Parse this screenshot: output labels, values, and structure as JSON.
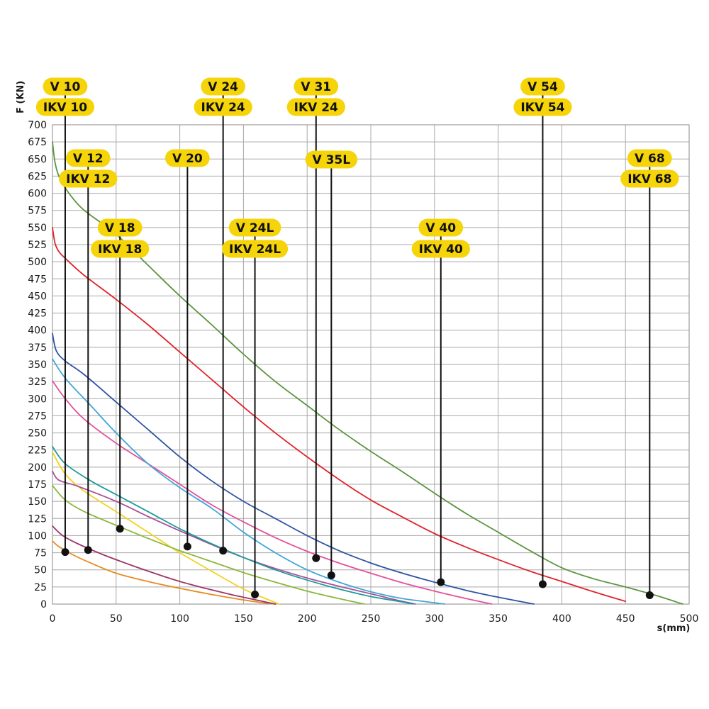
{
  "chart_data": {
    "type": "line",
    "xlabel": "s(mm)",
    "ylabel": "F (KN)",
    "xlim": [
      0,
      500
    ],
    "ylim": [
      0,
      700
    ],
    "xticks": [
      "0",
      "50",
      "100",
      "150",
      "200",
      "250",
      "300",
      "350",
      "400",
      "450",
      "500"
    ],
    "yticks": [
      "0",
      "25",
      "50",
      "75",
      "100",
      "125",
      "150",
      "175",
      "200",
      "225",
      "250",
      "275",
      "300",
      "325",
      "350",
      "375",
      "400",
      "425",
      "450",
      "475",
      "500",
      "525",
      "550",
      "575",
      "600",
      "625",
      "650",
      "675",
      "700"
    ],
    "grid": true,
    "label_color": "#f6d40a",
    "series": [
      {
        "color": "#e88a24",
        "x": [
          0,
          5,
          15,
          30,
          50,
          75,
          100,
          125,
          150,
          165,
          175
        ],
        "y": [
          92,
          84,
          73,
          60,
          45,
          33,
          23,
          14,
          6,
          2,
          0
        ]
      },
      {
        "color": "#9c3568",
        "x": [
          0,
          8,
          20,
          40,
          60,
          80,
          100,
          120,
          140,
          160,
          175
        ],
        "y": [
          114,
          100,
          88,
          72,
          58,
          45,
          33,
          23,
          14,
          6,
          0
        ]
      },
      {
        "color": "#f2d21c",
        "x": [
          0,
          10,
          25,
          50,
          75,
          100,
          125,
          150,
          170,
          178
        ],
        "y": [
          222,
          190,
          165,
          135,
          105,
          75,
          48,
          22,
          6,
          0
        ]
      },
      {
        "color": "#8ab83a",
        "x": [
          0,
          10,
          25,
          50,
          75,
          100,
          125,
          150,
          175,
          200,
          225,
          245
        ],
        "y": [
          173,
          152,
          135,
          115,
          96,
          78,
          62,
          46,
          32,
          19,
          8,
          0
        ]
      },
      {
        "color": "#a84f9a",
        "x": [
          0,
          5,
          20,
          50,
          75,
          100,
          125,
          150,
          175,
          200,
          225,
          250,
          270,
          285
        ],
        "y": [
          194,
          181,
          172,
          150,
          128,
          107,
          87,
          68,
          52,
          38,
          26,
          15,
          6,
          0
        ]
      },
      {
        "color": "#1d9a9a",
        "x": [
          0,
          10,
          30,
          50,
          75,
          100,
          125,
          150,
          175,
          200,
          225,
          250,
          275,
          283
        ],
        "y": [
          230,
          205,
          180,
          160,
          135,
          110,
          88,
          68,
          50,
          35,
          22,
          11,
          3,
          0
        ]
      },
      {
        "color": "#e4509a",
        "x": [
          0,
          10,
          25,
          50,
          75,
          100,
          125,
          150,
          175,
          200,
          225,
          250,
          275,
          300,
          325,
          345
        ],
        "y": [
          326,
          300,
          270,
          235,
          205,
          175,
          145,
          120,
          97,
          77,
          60,
          45,
          31,
          19,
          8,
          0
        ]
      },
      {
        "color": "#3fa6d8",
        "x": [
          0,
          10,
          30,
          50,
          75,
          100,
          125,
          150,
          175,
          200,
          225,
          250,
          275,
          300,
          308
        ],
        "y": [
          358,
          330,
          290,
          250,
          205,
          170,
          140,
          105,
          75,
          50,
          32,
          18,
          8,
          2,
          0
        ]
      },
      {
        "color": "#2e53a3",
        "x": [
          0,
          3,
          10,
          25,
          50,
          75,
          100,
          125,
          150,
          175,
          200,
          225,
          250,
          275,
          300,
          325,
          350,
          378
        ],
        "y": [
          395,
          370,
          355,
          335,
          295,
          255,
          215,
          180,
          150,
          125,
          100,
          78,
          60,
          45,
          32,
          20,
          10,
          0
        ]
      },
      {
        "color": "#e0232a",
        "x": [
          0,
          2,
          5,
          10,
          25,
          50,
          75,
          100,
          125,
          150,
          175,
          200,
          225,
          250,
          275,
          300,
          325,
          350,
          375,
          400,
          425,
          450
        ],
        "y": [
          550,
          527,
          515,
          505,
          480,
          445,
          408,
          368,
          328,
          288,
          250,
          215,
          182,
          152,
          127,
          103,
          83,
          65,
          48,
          33,
          18,
          4
        ]
      },
      {
        "color": "#5c9440",
        "x": [
          0,
          2,
          5,
          10,
          15,
          25,
          50,
          75,
          100,
          125,
          150,
          175,
          200,
          225,
          250,
          275,
          300,
          325,
          350,
          375,
          400,
          425,
          450,
          475,
          495
        ],
        "y": [
          675,
          645,
          625,
          608,
          595,
          575,
          540,
          495,
          450,
          408,
          365,
          325,
          290,
          255,
          223,
          193,
          162,
          132,
          105,
          78,
          53,
          37,
          25,
          12,
          0
        ]
      }
    ],
    "annotations": [
      {
        "labels": [
          "V 10",
          "IKV 10"
        ],
        "x": 10,
        "y": 76
      },
      {
        "labels": [
          "V 12",
          "IKV 12"
        ],
        "x": 28,
        "y": 79
      },
      {
        "labels": [
          "V 18",
          "IKV 18"
        ],
        "x": 53,
        "y": 110
      },
      {
        "labels": [
          "V 20"
        ],
        "x": 106,
        "y": 84
      },
      {
        "labels": [
          "V 24",
          "IKV 24"
        ],
        "x": 134,
        "y": 78
      },
      {
        "labels": [
          "V 24L",
          "IKV 24L"
        ],
        "x": 159,
        "y": 14
      },
      {
        "labels": [
          "V 31",
          "IKV 24"
        ],
        "x": 207,
        "y": 67
      },
      {
        "labels": [
          "V 35L"
        ],
        "x": 219,
        "y": 42
      },
      {
        "labels": [
          "V 40",
          "IKV 40"
        ],
        "x": 305,
        "y": 32
      },
      {
        "labels": [
          "V 54",
          "IKV 54"
        ],
        "x": 385,
        "y": 29
      },
      {
        "labels": [
          "V 68",
          "IKV 68"
        ],
        "x": 469,
        "y": 13
      }
    ]
  }
}
